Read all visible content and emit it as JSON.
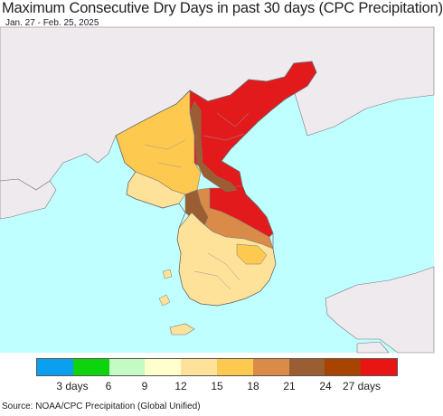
{
  "title": "Maximum Consecutive Dry Days in past 30 days (CPC Precipitation)",
  "subtitle": "Jan. 27 - Feb. 25, 2025",
  "source": "Source: NOAA/CPC Precipitation (Global Unified)",
  "legend": {
    "colors": [
      "#0a9fef",
      "#0ed40e",
      "#c4fbc4",
      "#ffffcc",
      "#ffe299",
      "#fdc94f",
      "#d98b47",
      "#9b5e32",
      "#a84300",
      "#e91515"
    ],
    "tick_labels": [
      "3 days",
      "6",
      "9",
      "12",
      "15",
      "18",
      "21",
      "24",
      "27 days"
    ]
  },
  "map_colors": {
    "sea": "#c0ffff",
    "land_outside": "#eeeaee",
    "north_high": "#e31a1c",
    "west_orange": "#fdc94f",
    "light_orange": "#ffe299",
    "brown_band": "#9b5e32",
    "tan_band": "#d98b47",
    "border": "#888888"
  }
}
